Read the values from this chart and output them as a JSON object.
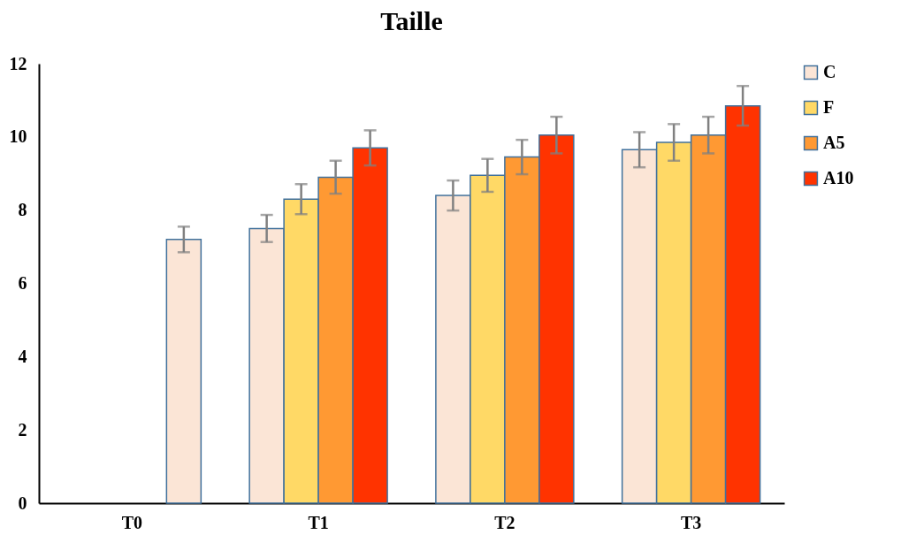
{
  "chart_data": {
    "type": "bar",
    "title": "Taille",
    "categories": [
      "T0",
      "T1",
      "T2",
      "T3"
    ],
    "series": [
      {
        "name": "C",
        "color": "#fbe5d6",
        "values": [
          null,
          7.5,
          8.4,
          9.65
        ],
        "errors": [
          null,
          0.37,
          0.41,
          0.48
        ]
      },
      {
        "name": "F",
        "color": "#ffd966",
        "values": [
          null,
          8.3,
          8.95,
          9.85
        ],
        "errors": [
          null,
          0.41,
          0.45,
          0.5
        ]
      },
      {
        "name": "A5",
        "color": "#ff9933",
        "values": [
          null,
          8.9,
          9.45,
          10.05
        ],
        "errors": [
          null,
          0.45,
          0.47,
          0.5
        ]
      },
      {
        "name": "A10",
        "color": "#ff3300",
        "colors": [
          "#fbe5d6",
          "#ff3300",
          "#ff3300",
          "#ff3300"
        ],
        "values": [
          7.2,
          9.7,
          10.05,
          10.85
        ],
        "errors": [
          0.35,
          0.48,
          0.5,
          0.54
        ]
      }
    ],
    "ylim": [
      0,
      12
    ],
    "yticks": [
      0,
      2,
      4,
      6,
      8,
      10,
      12
    ],
    "grid": false,
    "legend": "right"
  }
}
